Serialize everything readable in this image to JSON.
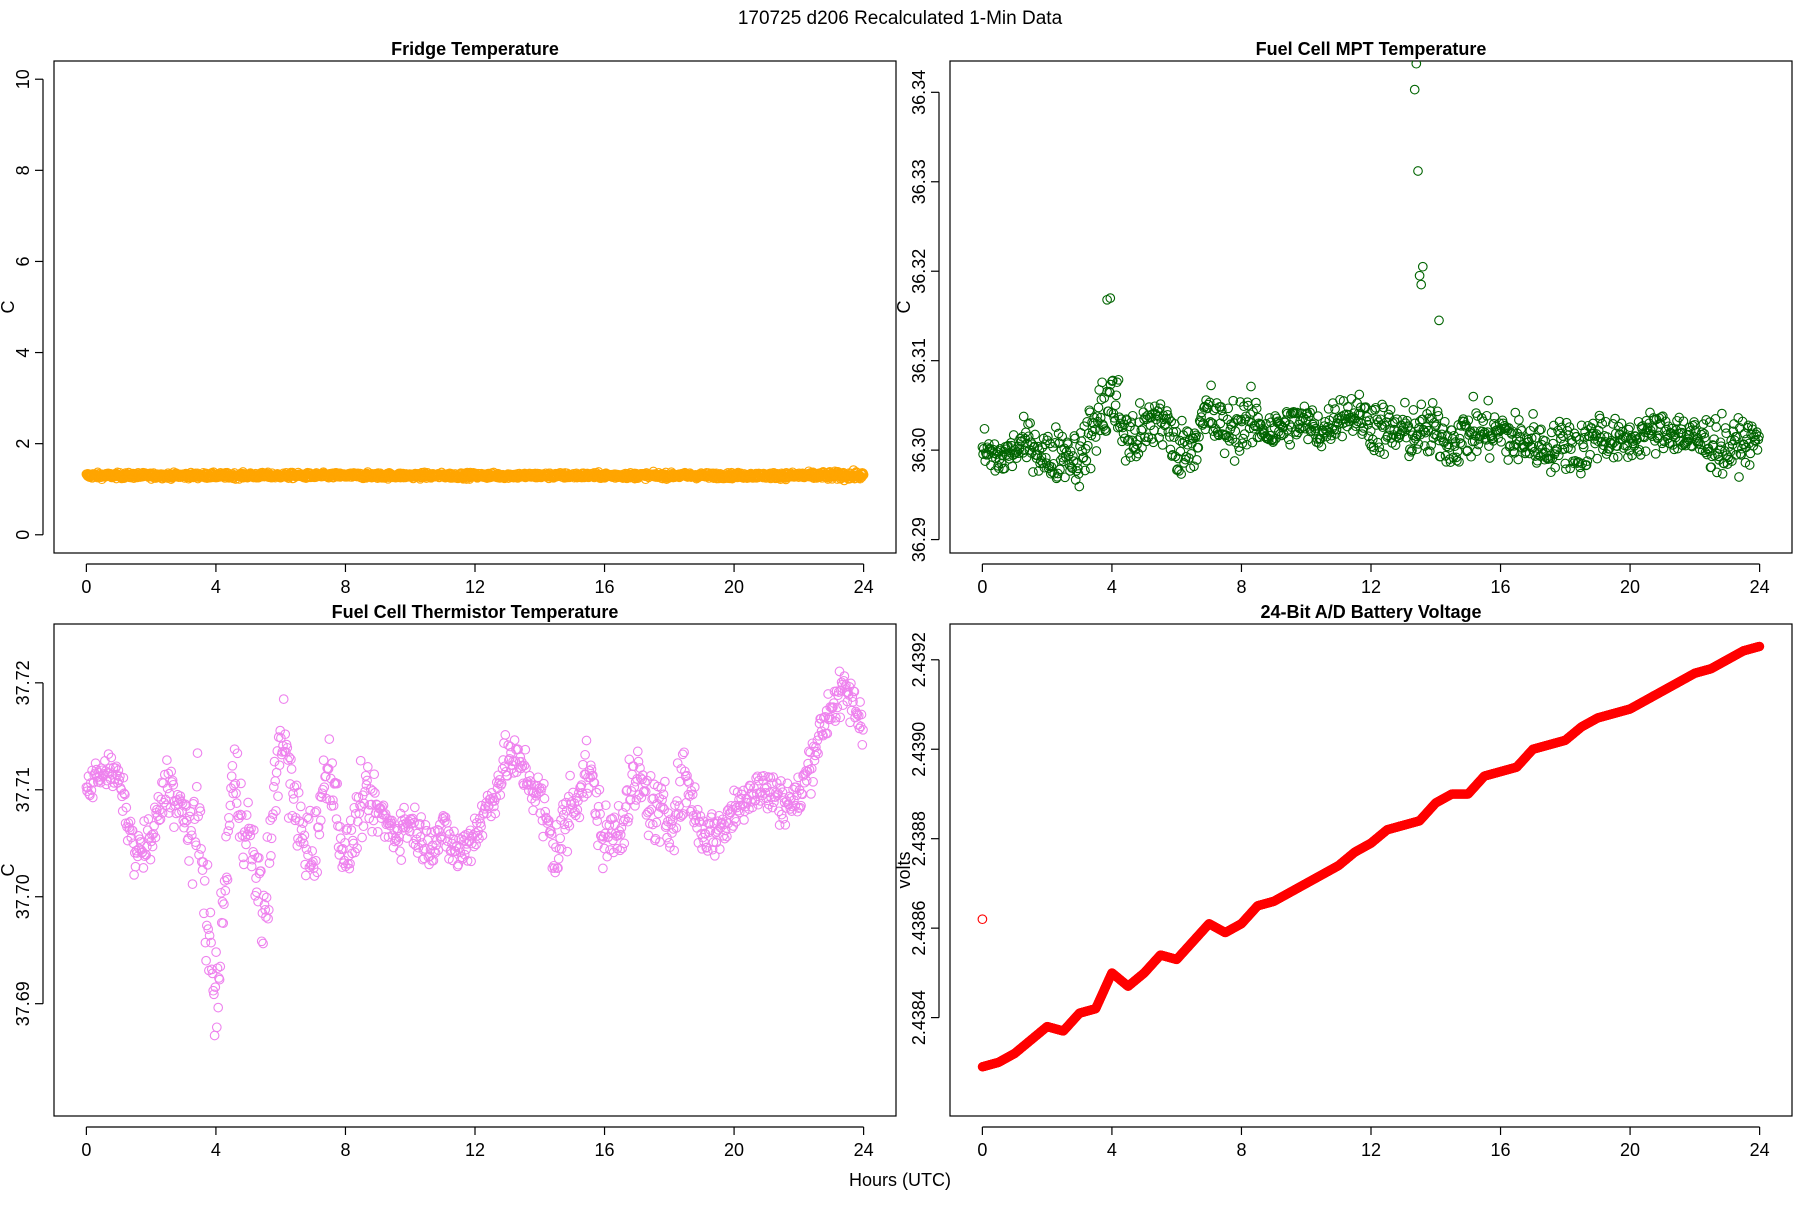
{
  "figure": {
    "title": "170725   d206   Recalculated 1-Min Data",
    "xlabel": "Hours (UTC)"
  },
  "chart_data": [
    {
      "type": "scatter",
      "title": "Fridge Temperature",
      "xlabel": "",
      "ylabel": "C",
      "xlim": [
        -1,
        25
      ],
      "ylim": [
        -0.4,
        10.4
      ],
      "xticks": [
        0,
        4,
        8,
        12,
        16,
        20,
        24
      ],
      "yticks": [
        0,
        2,
        4,
        6,
        8,
        10
      ],
      "ytick_labels": [
        "0",
        "2",
        "4",
        "6",
        "8",
        "10"
      ],
      "color": "#ffa500",
      "series": [
        {
          "x": [
            0,
            1,
            2,
            3,
            4,
            5,
            6,
            7,
            8,
            9,
            10,
            11,
            12,
            13,
            14,
            15,
            16,
            17,
            18,
            19,
            20,
            21,
            22,
            23,
            24
          ],
          "y": [
            1.3,
            1.3,
            1.3,
            1.3,
            1.3,
            1.3,
            1.3,
            1.3,
            1.3,
            1.3,
            1.3,
            1.3,
            1.3,
            1.3,
            1.3,
            1.3,
            1.3,
            1.3,
            1.3,
            1.3,
            1.3,
            1.3,
            1.3,
            1.3,
            1.3
          ],
          "spread": [
            0.1,
            0.1,
            0.1,
            0.1,
            0.1,
            0.1,
            0.1,
            0.1,
            0.1,
            0.1,
            0.1,
            0.1,
            0.1,
            0.1,
            0.1,
            0.1,
            0.1,
            0.1,
            0.1,
            0.1,
            0.1,
            0.1,
            0.12,
            0.14,
            0.14
          ]
        }
      ]
    },
    {
      "type": "scatter",
      "title": "Fuel Cell MPT Temperature",
      "xlabel": "",
      "ylabel": "C",
      "xlim": [
        -1,
        25
      ],
      "ylim": [
        36.2885,
        36.3435
      ],
      "xticks": [
        0,
        4,
        8,
        12,
        16,
        20,
        24
      ],
      "yticks": [
        36.29,
        36.3,
        36.31,
        36.32,
        36.33,
        36.34
      ],
      "ytick_labels": [
        "36.29",
        "36.30",
        "36.31",
        "36.32",
        "36.33",
        "36.34"
      ],
      "color": "#006400",
      "series": [
        {
          "x": [
            0,
            0.5,
            1,
            1.5,
            2,
            2.5,
            3,
            3.5,
            4,
            4.5,
            5,
            5.5,
            6,
            6.5,
            7,
            7.5,
            8,
            8.5,
            9,
            9.5,
            10,
            10.5,
            11,
            11.5,
            12,
            12.5,
            13,
            13.5,
            14,
            14.5,
            15,
            15.5,
            16,
            16.5,
            17,
            17.5,
            18,
            18.5,
            19,
            19.5,
            20,
            20.5,
            21,
            21.5,
            22,
            22.5,
            23,
            23.5,
            24
          ],
          "y": [
            36.3,
            36.299,
            36.3,
            36.301,
            36.299,
            36.3,
            36.299,
            36.303,
            36.306,
            36.301,
            36.302,
            36.304,
            36.3,
            36.301,
            36.304,
            36.302,
            36.303,
            36.303,
            36.302,
            36.303,
            36.303,
            36.302,
            36.304,
            36.304,
            36.303,
            36.302,
            36.302,
            36.302,
            36.302,
            36.301,
            36.302,
            36.302,
            36.302,
            36.301,
            36.301,
            36.3,
            36.301,
            36.3,
            36.302,
            36.301,
            36.301,
            36.302,
            36.302,
            36.302,
            36.301,
            36.301,
            36.3,
            36.301,
            36.301
          ],
          "spread": [
            0.003,
            0.003,
            0.003,
            0.003,
            0.004,
            0.004,
            0.004,
            0.005,
            0.006,
            0.005,
            0.004,
            0.005,
            0.004,
            0.004,
            0.005,
            0.004,
            0.004,
            0.004,
            0.003,
            0.003,
            0.003,
            0.003,
            0.003,
            0.003,
            0.004,
            0.004,
            0.004,
            0.004,
            0.004,
            0.004,
            0.004,
            0.004,
            0.004,
            0.004,
            0.004,
            0.003,
            0.004,
            0.004,
            0.004,
            0.003,
            0.003,
            0.003,
            0.003,
            0.003,
            0.004,
            0.004,
            0.004,
            0.003,
            0.003
          ]
        },
        {
          "name": "",
          "x": [
            13.35,
            13.4,
            13.45,
            13.5,
            13.55,
            13.6,
            3.85,
            3.95,
            14.1
          ],
          "y": [
            36.3403,
            36.3432,
            36.3312,
            36.3195,
            36.3185,
            36.3205,
            36.3168,
            36.317,
            36.3145
          ]
        }
      ]
    },
    {
      "type": "scatter",
      "title": "Fuel Cell Thermistor Temperature",
      "xlabel": "",
      "ylabel": "C",
      "xlim": [
        -1,
        25
      ],
      "ylim": [
        37.6795,
        37.7255
      ],
      "xticks": [
        0,
        4,
        8,
        12,
        16,
        20,
        24
      ],
      "yticks": [
        37.69,
        37.7,
        37.71,
        37.72
      ],
      "ytick_labels": [
        "37.69",
        "37.70",
        "37.71",
        "37.72"
      ],
      "color": "#ee82ee",
      "series": [
        {
          "x": [
            0,
            0.5,
            1,
            1.5,
            2,
            2.5,
            3,
            3.5,
            4,
            4.5,
            5,
            5.5,
            6,
            6.5,
            7,
            7.5,
            8,
            8.5,
            9,
            9.5,
            10,
            10.5,
            11,
            11.5,
            12,
            12.5,
            13,
            13.5,
            14,
            14.5,
            15,
            15.5,
            16,
            16.5,
            17,
            17.5,
            18,
            18.5,
            19,
            19.5,
            20,
            20.5,
            21,
            21.5,
            22,
            22.5,
            23,
            23.5,
            24
          ],
          "y": [
            37.71,
            37.712,
            37.711,
            37.704,
            37.705,
            37.711,
            37.707,
            37.706,
            37.689,
            37.711,
            37.706,
            37.698,
            37.716,
            37.707,
            37.704,
            37.713,
            37.703,
            37.709,
            37.708,
            37.706,
            37.707,
            37.705,
            37.706,
            37.704,
            37.706,
            37.709,
            37.713,
            37.712,
            37.709,
            37.704,
            37.709,
            37.712,
            37.705,
            37.707,
            37.711,
            37.708,
            37.707,
            37.711,
            37.706,
            37.706,
            37.708,
            37.71,
            37.71,
            37.709,
            37.709,
            37.714,
            37.718,
            37.719,
            37.716
          ],
          "spread": [
            0.002,
            0.002,
            0.002,
            0.003,
            0.003,
            0.003,
            0.005,
            0.007,
            0.005,
            0.006,
            0.005,
            0.006,
            0.005,
            0.006,
            0.005,
            0.004,
            0.004,
            0.004,
            0.003,
            0.003,
            0.003,
            0.003,
            0.003,
            0.003,
            0.003,
            0.003,
            0.003,
            0.003,
            0.004,
            0.005,
            0.005,
            0.004,
            0.004,
            0.004,
            0.004,
            0.004,
            0.004,
            0.004,
            0.003,
            0.003,
            0.003,
            0.003,
            0.003,
            0.003,
            0.003,
            0.003,
            0.003,
            0.003,
            0.003
          ]
        }
      ]
    },
    {
      "type": "scatter",
      "title": "24-Bit A/D Battery Voltage",
      "xlabel": "",
      "ylabel": "volts",
      "xlim": [
        -1,
        25
      ],
      "ylim": [
        2.43818,
        2.43928
      ],
      "xticks": [
        0,
        4,
        8,
        12,
        16,
        20,
        24
      ],
      "yticks": [
        2.4384,
        2.4386,
        2.4388,
        2.439,
        2.4392
      ],
      "ytick_labels": [
        "2.4384",
        "2.4386",
        "2.4388",
        "2.4390",
        "2.4392"
      ],
      "color": "#ff0000",
      "series": [
        {
          "x": [
            0,
            0.5,
            1,
            1.5,
            2,
            2.5,
            3,
            3.5,
            4,
            4.5,
            5,
            5.5,
            6,
            6.5,
            7,
            7.5,
            8,
            8.5,
            9,
            9.5,
            10,
            10.5,
            11,
            11.5,
            12,
            12.5,
            13,
            13.5,
            14,
            14.5,
            15,
            15.5,
            16,
            16.5,
            17,
            17.5,
            18,
            18.5,
            19,
            19.5,
            20,
            20.5,
            21,
            21.5,
            22,
            22.5,
            23,
            23.5,
            24
          ],
          "y": [
            2.43829,
            2.4383,
            2.43832,
            2.43835,
            2.43838,
            2.43837,
            2.43841,
            2.43842,
            2.4385,
            2.43847,
            2.4385,
            2.43854,
            2.43853,
            2.43857,
            2.43861,
            2.43859,
            2.43861,
            2.43865,
            2.43866,
            2.43868,
            2.4387,
            2.43872,
            2.43874,
            2.43877,
            2.43879,
            2.43882,
            2.43883,
            2.43884,
            2.43888,
            2.4389,
            2.4389,
            2.43894,
            2.43895,
            2.43896,
            2.439,
            2.43901,
            2.43902,
            2.43905,
            2.43907,
            2.43908,
            2.43909,
            2.43911,
            2.43913,
            2.43915,
            2.43917,
            2.43918,
            2.4392,
            2.43922,
            2.43923
          ]
        },
        {
          "name": "",
          "x": [
            0
          ],
          "y": [
            2.43862
          ]
        }
      ]
    }
  ]
}
